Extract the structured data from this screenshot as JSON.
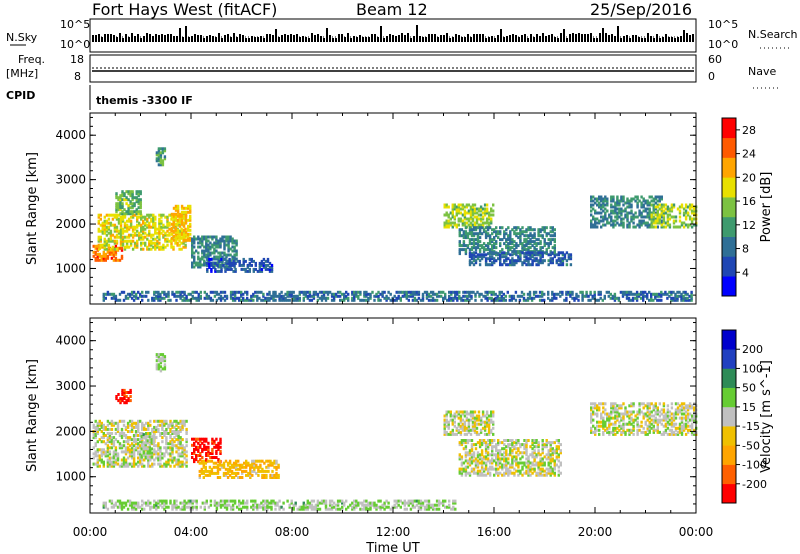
{
  "header": {
    "station": "Fort Hays West (fitACF)",
    "beam": "Beam 12",
    "date": "25/Sep/2016"
  },
  "strips": {
    "nsky_label": "N.Sky",
    "nsky_ticks": [
      "10^5",
      "10^0"
    ],
    "nsearch_label": "N.Search",
    "nsearch_ticks": [
      "10^5",
      "10^0"
    ],
    "freq_label": "Freq.",
    "freq_unit": "[MHz]",
    "freq_ticks": [
      "18",
      "8"
    ],
    "nave_label": "Nave",
    "nave_ticks": [
      "60",
      "0"
    ],
    "cpid_label": "CPID",
    "cpid_text": "themis -3300 IF"
  },
  "xaxis": {
    "label": "Time UT",
    "ticks": [
      "00:00",
      "04:00",
      "08:00",
      "12:00",
      "16:00",
      "20:00",
      "00:00"
    ]
  },
  "chart_data": [
    {
      "type": "heatmap",
      "title": "",
      "xlabel": "Time UT",
      "ylabel": "Slant Range [km]",
      "x_ticks": [
        "00:00",
        "04:00",
        "08:00",
        "12:00",
        "16:00",
        "20:00",
        "00:00"
      ],
      "xlim_hours": [
        0,
        24
      ],
      "y_ticks": [
        1000,
        2000,
        3000,
        4000
      ],
      "ylim": [
        200,
        4500
      ],
      "colorbar": {
        "label": "Power [dB]",
        "ticks": [
          4,
          8,
          12,
          16,
          20,
          24,
          28
        ],
        "range": [
          0,
          30
        ],
        "colors": [
          "#0000ff",
          "#1f46b4",
          "#2f6f96",
          "#3e9a6e",
          "#7cc242",
          "#e8e000",
          "#ffa500",
          "#ff5a00",
          "#ff0000"
        ]
      },
      "patches": [
        {
          "t0": 0.1,
          "t1": 1.3,
          "r0": 1150,
          "r1": 1500,
          "value": 24
        },
        {
          "t0": 0.3,
          "t1": 3.8,
          "r0": 1400,
          "r1": 2200,
          "value": 18
        },
        {
          "t0": 1.0,
          "t1": 2.0,
          "r0": 2200,
          "r1": 2700,
          "value": 14
        },
        {
          "t0": 2.6,
          "t1": 3.0,
          "r0": 3300,
          "r1": 3700,
          "value": 12
        },
        {
          "t0": 3.2,
          "t1": 4.0,
          "r0": 1600,
          "r1": 2400,
          "value": 20
        },
        {
          "t0": 4.0,
          "t1": 5.8,
          "r0": 1000,
          "r1": 1700,
          "value": 10
        },
        {
          "t0": 4.6,
          "t1": 7.2,
          "r0": 900,
          "r1": 1200,
          "value": 6
        },
        {
          "t0": 14.0,
          "t1": 16.0,
          "r0": 1900,
          "r1": 2400,
          "value": 16
        },
        {
          "t0": 14.6,
          "t1": 18.4,
          "r0": 1300,
          "r1": 1900,
          "value": 10
        },
        {
          "t0": 15.0,
          "t1": 19.0,
          "r0": 1050,
          "r1": 1350,
          "value": 7
        },
        {
          "t0": 19.8,
          "t1": 22.6,
          "r0": 1900,
          "r1": 2600,
          "value": 10
        },
        {
          "t0": 22.2,
          "t1": 24.0,
          "r0": 1900,
          "r1": 2400,
          "value": 16
        },
        {
          "t0": 0.5,
          "t1": 23.8,
          "r0": 250,
          "r1": 450,
          "value": 8
        }
      ]
    },
    {
      "type": "heatmap",
      "title": "",
      "xlabel": "Time UT",
      "ylabel": "Slant Range [km]",
      "x_ticks": [
        "00:00",
        "04:00",
        "08:00",
        "12:00",
        "16:00",
        "20:00",
        "00:00"
      ],
      "xlim_hours": [
        0,
        24
      ],
      "y_ticks": [
        1000,
        2000,
        3000,
        4000
      ],
      "ylim": [
        200,
        4500
      ],
      "colorbar": {
        "label": "Velocity [m s^-1]",
        "ticks": [
          "200",
          "100",
          "50",
          "15",
          "-15",
          "-50",
          "-100",
          "-200"
        ],
        "range": [
          -250,
          250
        ],
        "colors": [
          "#ff0000",
          "#ff6000",
          "#ffa500",
          "#f0c000",
          "#c0c0c0",
          "#66cc33",
          "#2e8b57",
          "#2040c0",
          "#0000cc"
        ]
      },
      "patches": [
        {
          "t0": 0.1,
          "t1": 3.8,
          "r0": 1200,
          "r1": 2200,
          "value": 0
        },
        {
          "t0": 1.0,
          "t1": 1.6,
          "r0": 2600,
          "r1": 2900,
          "value": -220
        },
        {
          "t0": 2.0,
          "t1": 2.5,
          "r0": 1400,
          "r1": 1900,
          "value": 30
        },
        {
          "t0": 2.6,
          "t1": 3.0,
          "r0": 3300,
          "r1": 3700,
          "value": 30
        },
        {
          "t0": 4.0,
          "t1": 5.2,
          "r0": 1300,
          "r1": 1800,
          "value": -220
        },
        {
          "t0": 4.3,
          "t1": 7.5,
          "r0": 950,
          "r1": 1350,
          "value": -70
        },
        {
          "t0": 14.0,
          "t1": 16.0,
          "r0": 1900,
          "r1": 2400,
          "value": 0
        },
        {
          "t0": 14.6,
          "t1": 18.6,
          "r0": 1000,
          "r1": 1800,
          "value": 0
        },
        {
          "t0": 19.8,
          "t1": 24.0,
          "r0": 1900,
          "r1": 2600,
          "value": 0
        },
        {
          "t0": 0.5,
          "t1": 14.5,
          "r0": 250,
          "r1": 450,
          "value": 30
        }
      ]
    }
  ]
}
